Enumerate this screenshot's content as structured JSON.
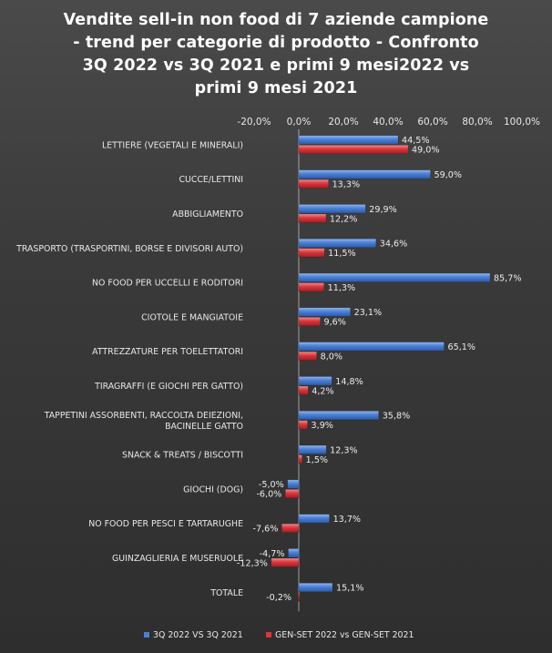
{
  "chart_data": {
    "type": "bar",
    "orientation": "horizontal",
    "title": "Vendite sell-in non food di 7 aziende campione - trend per categorie di prodotto - Confronto 3Q 2022 vs 3Q 2021 e primi 9 mesi2022 vs primi 9 mesi 2021",
    "title_lines": [
      "Vendite sell-in non food di 7 aziende campione",
      "- trend per categorie di prodotto - Confronto",
      "3Q 2022 vs 3Q 2021 e primi 9 mesi2022 vs",
      "primi 9 mesi 2021"
    ],
    "categories": [
      [
        "LETTIERE (VEGETALI E MINERALI)"
      ],
      [
        "CUCCE/LETTINI"
      ],
      [
        "ABBIGLIAMENTO"
      ],
      [
        "TRASPORTO (TRASPORTINI,  BORSE E DIVISORI AUTO)"
      ],
      [
        "NO FOOD PER UCCELLI E RODITORI"
      ],
      [
        "CIOTOLE E MANGIATOIE"
      ],
      [
        "ATTREZZATURE PER TOELETTATORI"
      ],
      [
        "TIRAGRAFFI (E GIOCHI PER GATTO)"
      ],
      [
        "TAPPETINI ASSORBENTI, RACCOLTA DEIEZIONI,",
        "BACINELLE GATTO"
      ],
      [
        "SNACK & TREATS / BISCOTTI"
      ],
      [
        "GIOCHI (DOG)"
      ],
      [
        "NO FOOD PER PESCI E TARTARUGHE"
      ],
      [
        "GUINZAGLIERIA E MUSERUOLE"
      ],
      [
        "TOTALE"
      ]
    ],
    "series": [
      {
        "name": "3Q 2022 VS 3Q 2021",
        "color": "#4a7fd4",
        "values": [
          44.5,
          59.0,
          29.9,
          34.6,
          85.7,
          23.1,
          65.1,
          14.8,
          35.8,
          12.3,
          -5.0,
          13.7,
          -4.7,
          15.1
        ],
        "labels": [
          "44,5%",
          "59,0%",
          "29,9%",
          "34,6%",
          "85,7%",
          "23,1%",
          "65,1%",
          "14,8%",
          "35,8%",
          "12,3%",
          "-5,0%",
          "13,7%",
          "-4,7%",
          "15,1%"
        ]
      },
      {
        "name": "GEN-SET 2022 vs GEN-SET 2021",
        "color": "#d9363b",
        "values": [
          49.0,
          13.3,
          12.2,
          11.5,
          11.3,
          9.6,
          8.0,
          4.2,
          3.9,
          1.5,
          -6.0,
          -7.6,
          -12.3,
          -0.2
        ],
        "labels": [
          "49,0%",
          "13,3%",
          "12,2%",
          "11,5%",
          "11,3%",
          "9,6%",
          "8,0%",
          "4,2%",
          "3,9%",
          "1,5%",
          "-6,0%",
          "-7,6%",
          "-12,3%",
          "-0,2%"
        ]
      }
    ],
    "xlim": [
      -20,
      100
    ],
    "xticks": [
      -20,
      0,
      20,
      40,
      60,
      80,
      100
    ],
    "xtick_labels": [
      "-20,0%",
      "0,0%",
      "20,0%",
      "40,0%",
      "60,0%",
      "80,0%",
      "100,0%"
    ],
    "xaxis_position": "top",
    "grid": false,
    "legend": "bottom"
  }
}
